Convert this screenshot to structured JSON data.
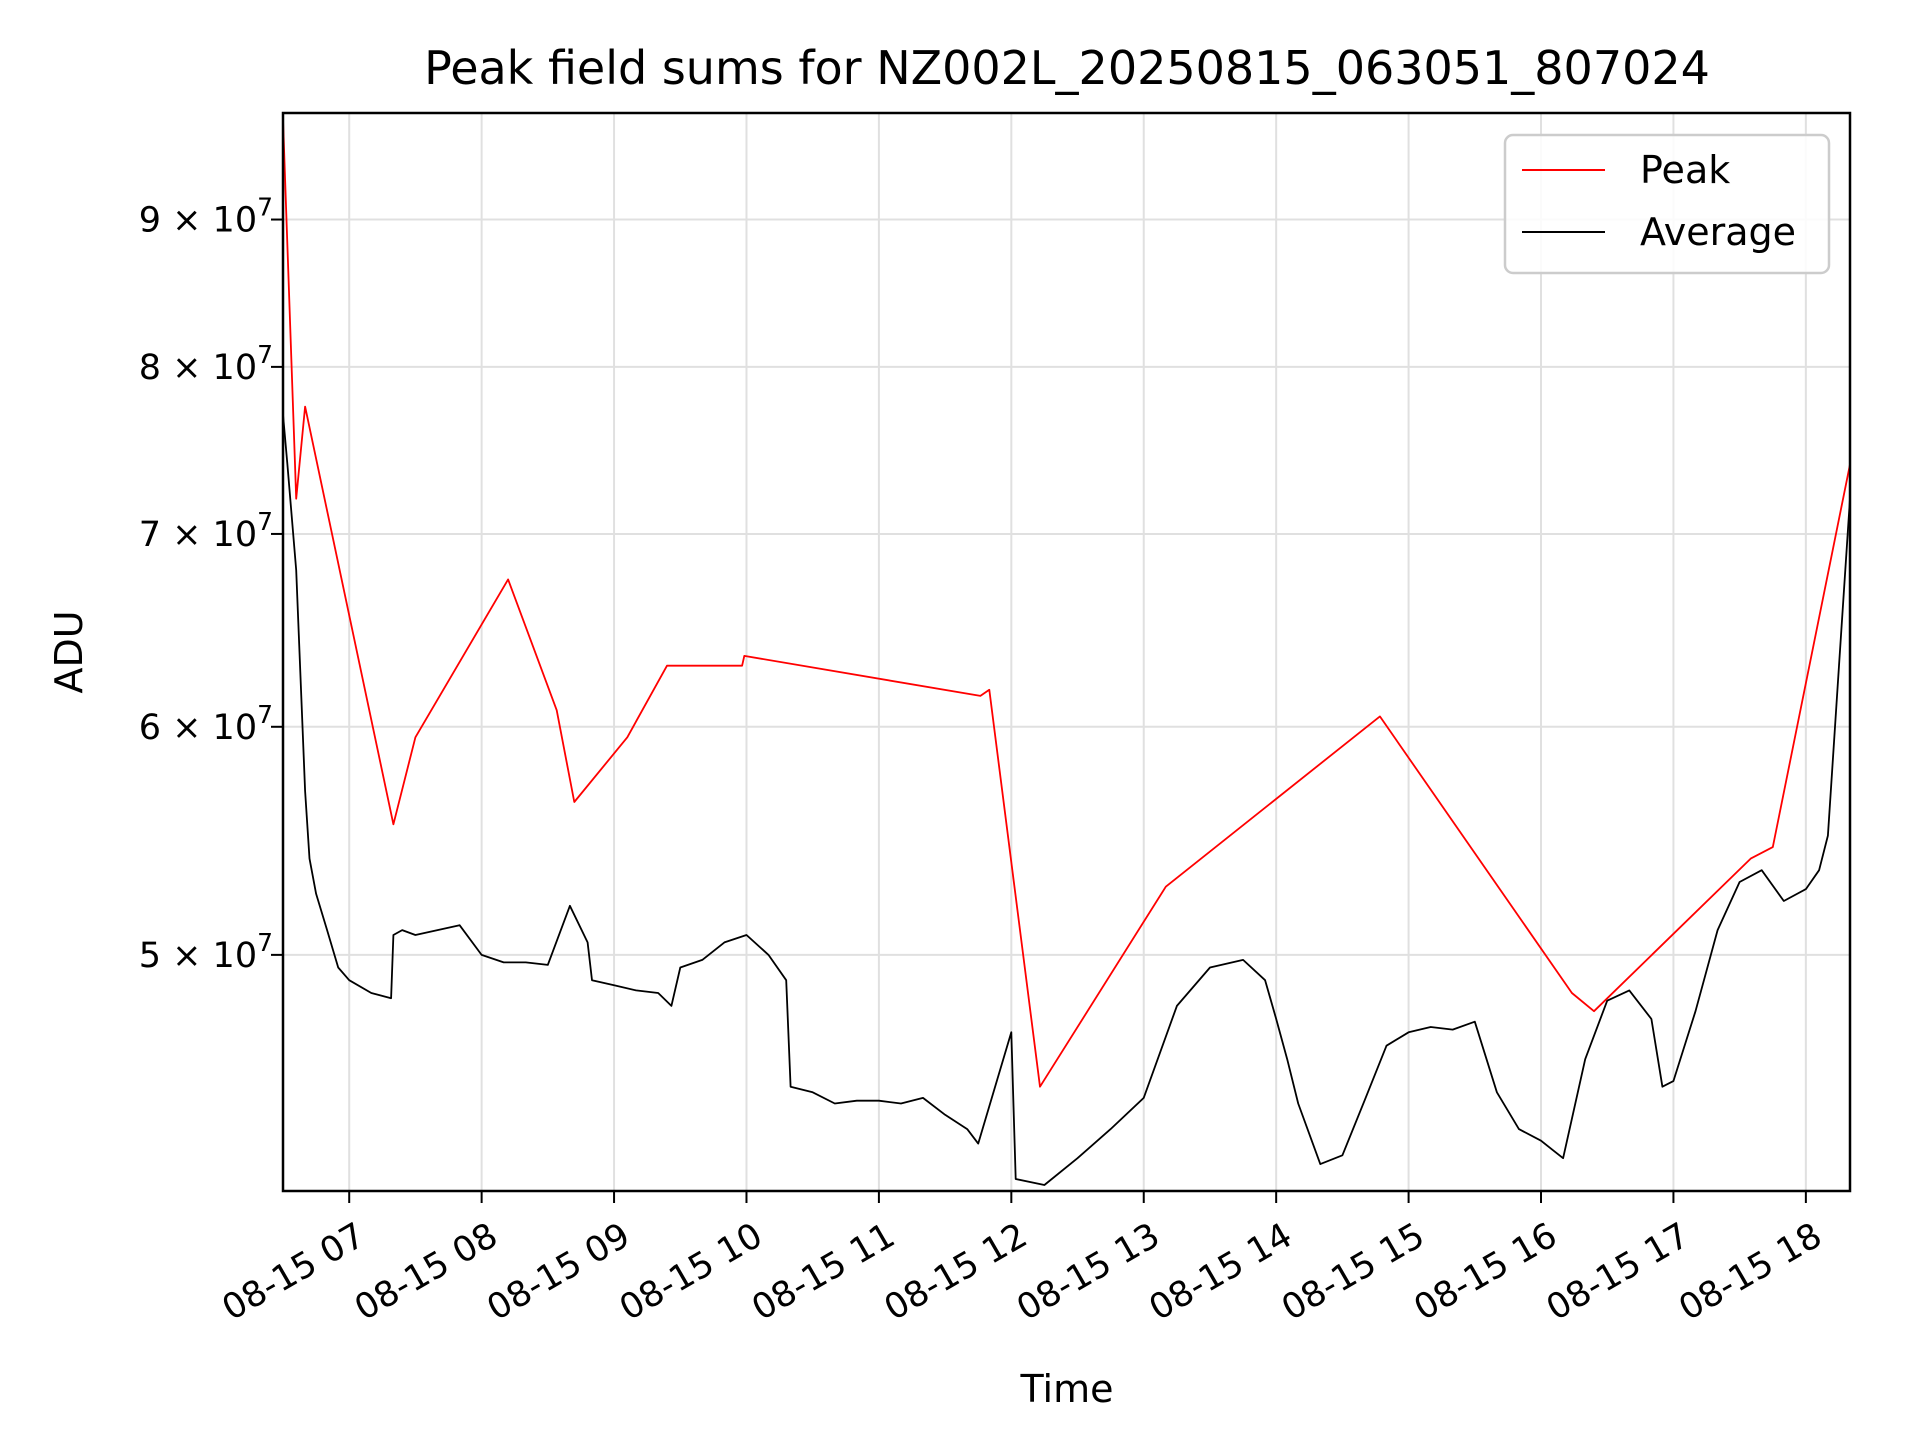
{
  "chart_data": {
    "type": "line",
    "title": "Peak field sums for NZ002L_20250815_063051_807024",
    "xlabel": "Time",
    "ylabel": "ADU",
    "y_scale": "log",
    "ylim": [
      41400000,
      98000000
    ],
    "xlim": [
      "08-15 06:30",
      "08-15 18:20"
    ],
    "grid": true,
    "legend_position": "upper right",
    "x_ticks": [
      {
        "value": "08-15 07:00",
        "label": "08-15 07"
      },
      {
        "value": "08-15 08:00",
        "label": "08-15 08"
      },
      {
        "value": "08-15 09:00",
        "label": "08-15 09"
      },
      {
        "value": "08-15 10:00",
        "label": "08-15 10"
      },
      {
        "value": "08-15 11:00",
        "label": "08-15 11"
      },
      {
        "value": "08-15 12:00",
        "label": "08-15 12"
      },
      {
        "value": "08-15 13:00",
        "label": "08-15 13"
      },
      {
        "value": "08-15 14:00",
        "label": "08-15 14"
      },
      {
        "value": "08-15 15:00",
        "label": "08-15 15"
      },
      {
        "value": "08-15 16:00",
        "label": "08-15 16"
      },
      {
        "value": "08-15 17:00",
        "label": "08-15 17"
      },
      {
        "value": "08-15 18:00",
        "label": "08-15 18"
      }
    ],
    "y_ticks": [
      {
        "value": 50000000,
        "mant": "5",
        "exp": "7"
      },
      {
        "value": 60000000,
        "mant": "6",
        "exp": "7"
      },
      {
        "value": 70000000,
        "mant": "7",
        "exp": "7"
      },
      {
        "value": 80000000,
        "mant": "8",
        "exp": "7"
      },
      {
        "value": 90000000,
        "mant": "9",
        "exp": "7"
      }
    ],
    "series": [
      {
        "name": "Average",
        "color": "#000000",
        "x": [
          "08-15 06:30",
          "08-15 06:32",
          "08-15 06:36",
          "08-15 06:40",
          "08-15 06:42",
          "08-15 06:45",
          "08-15 06:50",
          "08-15 06:55",
          "08-15 07:00",
          "08-15 07:10",
          "08-15 07:19",
          "08-15 07:20",
          "08-15 07:24",
          "08-15 07:30",
          "08-15 07:40",
          "08-15 07:50",
          "08-15 08:00",
          "08-15 08:10",
          "08-15 08:20",
          "08-15 08:30",
          "08-15 08:40",
          "08-15 08:48",
          "08-15 08:50",
          "08-15 09:00",
          "08-15 09:10",
          "08-15 09:20",
          "08-15 09:26",
          "08-15 09:30",
          "08-15 09:40",
          "08-15 09:50",
          "08-15 10:00",
          "08-15 10:10",
          "08-15 10:18",
          "08-15 10:20",
          "08-15 10:30",
          "08-15 10:40",
          "08-15 10:50",
          "08-15 11:00",
          "08-15 11:10",
          "08-15 11:20",
          "08-15 11:30",
          "08-15 11:40",
          "08-15 11:45",
          "08-15 12:00",
          "08-15 12:02",
          "08-15 12:15",
          "08-15 12:30",
          "08-15 12:45",
          "08-15 13:00",
          "08-15 13:15",
          "08-15 13:30",
          "08-15 13:45",
          "08-15 13:55",
          "08-15 14:00",
          "08-15 14:05",
          "08-15 14:10",
          "08-15 14:20",
          "08-15 14:30",
          "08-15 14:40",
          "08-15 14:50",
          "08-15 15:00",
          "08-15 15:10",
          "08-15 15:20",
          "08-15 15:30",
          "08-15 15:40",
          "08-15 15:50",
          "08-15 16:00",
          "08-15 16:05",
          "08-15 16:10",
          "08-15 16:20",
          "08-15 16:30",
          "08-15 16:40",
          "08-15 16:50",
          "08-15 16:55",
          "08-15 17:00",
          "08-15 17:10",
          "08-15 17:20",
          "08-15 17:30",
          "08-15 17:40",
          "08-15 17:50",
          "08-15 18:00",
          "08-15 18:06",
          "08-15 18:10",
          "08-15 18:15",
          "08-15 18:20"
        ],
        "y": [
          77000000,
          74000000,
          68000000,
          57000000,
          54000000,
          52500000,
          51000000,
          49500000,
          49000000,
          48500000,
          48300000,
          50800000,
          51000000,
          50800000,
          51000000,
          51200000,
          50000000,
          49700000,
          49700000,
          49600000,
          52000000,
          50500000,
          49000000,
          48800000,
          48600000,
          48500000,
          48000000,
          49500000,
          49800000,
          50500000,
          50800000,
          50000000,
          49000000,
          45000000,
          44800000,
          44400000,
          44500000,
          44500000,
          44400000,
          44600000,
          44000000,
          43500000,
          43000000,
          47000000,
          41800000,
          41600000,
          42500000,
          43500000,
          44600000,
          48000000,
          49500000,
          49800000,
          49000000,
          47500000,
          46000000,
          44400000,
          42300000,
          42600000,
          44500000,
          46500000,
          47000000,
          47200000,
          47100000,
          47400000,
          44800000,
          43500000,
          43100000,
          42800000,
          42500000,
          46000000,
          48200000,
          48600000,
          47500000,
          45000000,
          45200000,
          47800000,
          51000000,
          53000000,
          53500000,
          52200000,
          52700000,
          53500000,
          55000000,
          63000000,
          72000000
        ]
      },
      {
        "name": "Peak",
        "color": "#ff0000",
        "x": [
          "08-15 06:30",
          "08-15 06:36",
          "08-15 06:40",
          "08-15 07:20",
          "08-15 07:30",
          "08-15 08:12",
          "08-15 08:34",
          "08-15 08:42",
          "08-15 09:06",
          "08-15 09:24",
          "08-15 09:58",
          "08-15 09:59",
          "08-15 11:46",
          "08-15 11:50",
          "08-15 12:13",
          "08-15 13:10",
          "08-15 14:47",
          "08-15 16:14",
          "08-15 16:24",
          "08-15 17:35",
          "08-15 17:45",
          "08-15 18:20"
        ],
        "y": [
          97500000,
          72000000,
          77500000,
          55500000,
          59500000,
          67500000,
          60800000,
          56500000,
          59500000,
          63000000,
          63000000,
          63500000,
          61500000,
          61800000,
          45000000,
          52800000,
          60500000,
          48500000,
          47800000,
          54000000,
          54500000,
          74000000
        ]
      }
    ]
  }
}
